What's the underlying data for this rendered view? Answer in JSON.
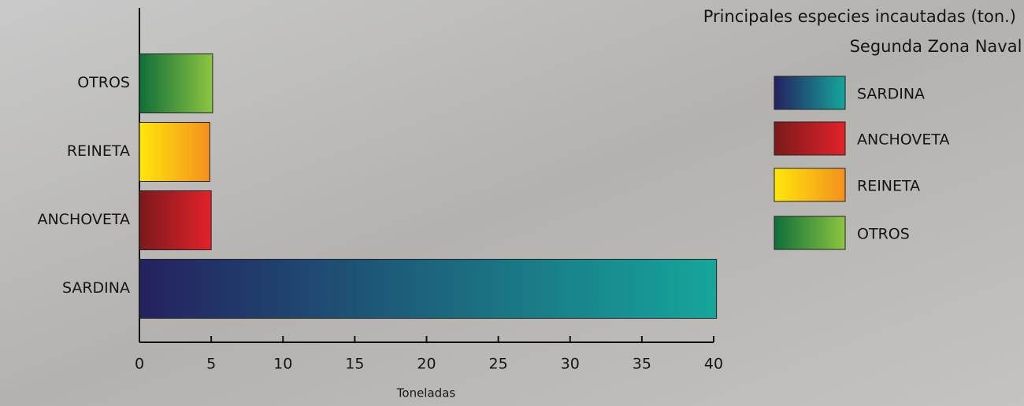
{
  "chart_data": {
    "type": "bar",
    "orientation": "horizontal",
    "title": "Principales especies incautadas (ton.)",
    "subtitle": "Segunda Zona Naval",
    "x_label": "Toneladas",
    "categories": [
      "SARDINA",
      "ANCHOVETA",
      "REINETA",
      "OTROS"
    ],
    "values": [
      40.2,
      5.0,
      4.9,
      5.1
    ],
    "colors": [
      [
        "#24215f",
        "#15a69b"
      ],
      [
        "#7a1a1c",
        "#e2222a"
      ],
      [
        "#ffe60a",
        "#f4901e"
      ],
      [
        "#0f6e3a",
        "#8cc540"
      ]
    ],
    "xlim": [
      0,
      40
    ],
    "xticks": [
      0,
      5,
      10,
      15,
      20,
      25,
      30,
      35,
      40
    ],
    "legend": "top-right"
  }
}
